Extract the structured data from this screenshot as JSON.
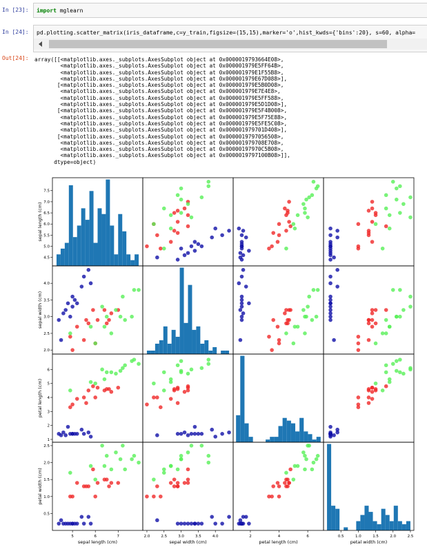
{
  "cells": [
    {
      "prompt": "In [23]:",
      "keyword": "import",
      "code": " mglearn"
    },
    {
      "prompt": "In [24]:",
      "code": "pd.plotting.scatter_matrix(iris_dataframe,c=y_train,figsize=(15,15),marker='o',hist_kwds={'bins':20}, s=60, alpha="
    }
  ],
  "output": {
    "prompt": "Out[24]:",
    "lines": [
      "array([[<matplotlib.axes._subplots.AxesSubplot object at 0x0000019793664E08>,",
      "        <matplotlib.axes._subplots.AxesSubplot object at 0x000001979E5FF64B>,",
      "        <matplotlib.axes._subplots.AxesSubplot object at 0x000001979E1F55B8>,",
      "        <matplotlib.axes._subplots.AxesSubplot object at 0x000001979E67D088>],",
      "       [<matplotlib.axes._subplots.AxesSubplot object at 0x000001979E5B0D08>,",
      "        <matplotlib.axes._subplots.AxesSubplot object at 0x000001979E7E4E8>,",
      "        <matplotlib.axes._subplots.AxesSubplot object at 0x000001979E5FF588>,",
      "        <matplotlib.axes._subplots.AxesSubplot object at 0x000001979E5D1D08>],",
      "       [<matplotlib.axes._subplots.AxesSubplot object at 0x000001979E5F4B008>,",
      "        <matplotlib.axes._subplots.AxesSubplot object at 0x000001979E5F75E88>,",
      "        <matplotlib.axes._subplots.AxesSubplot object at 0x000001979E5FE5C08>,",
      "        <matplotlib.axes._subplots.AxesSubplot object at 0x000001979701D408>],",
      "       [<matplotlib.axes._subplots.AxesSubplot object at 0x0000019797056508>,",
      "        <matplotlib.axes._subplots.AxesSubplot object at 0x000001979708E708>,",
      "        <matplotlib.axes._subplots.AxesSubplot object at 0x00000197970C5B08>,",
      "        <matplotlib.axes._subplots.AxesSubplot object at 0x0000019797100B08>]],",
      "      dtype=object)"
    ]
  },
  "chart_data": {
    "type": "scatter_matrix",
    "features": [
      {
        "label": "sepal length (cm)",
        "lim": [
          4.12,
          8.08
        ],
        "yticks": [
          4.5,
          {
            "value": 5,
            "label": "5.0"
          },
          5.5,
          {
            "value": 6,
            "label": "6.0"
          },
          6.5,
          {
            "value": 7,
            "label": "7.0"
          },
          7.5
        ],
        "xticks": [
          5,
          6,
          7
        ]
      },
      {
        "label": "sepal width (cm)",
        "lim": [
          1.88,
          4.52
        ],
        "yticks": [
          {
            "value": 2,
            "label": "2.0"
          },
          2.5,
          {
            "value": 3,
            "label": "3.0"
          },
          3.5,
          {
            "value": 4,
            "label": "4.0"
          }
        ],
        "xticks": [
          {
            "value": 2,
            "label": "2.0"
          },
          2.5,
          {
            "value": 3,
            "label": "3.0"
          },
          3.5,
          {
            "value": 4,
            "label": "4.0"
          }
        ]
      },
      {
        "label": "petal length (cm)",
        "lim": [
          0.8,
          7.1
        ],
        "yticks": [
          1,
          2,
          3,
          4,
          5,
          6
        ],
        "xticks": [
          2,
          4,
          6
        ]
      },
      {
        "label": "petal width (cm)",
        "lim": [
          0.0,
          2.6
        ],
        "yticks": [
          0.5,
          {
            "value": 1,
            "label": "1.0"
          },
          1.5,
          {
            "value": 2,
            "label": "2.0"
          },
          2.5
        ],
        "xticks": [
          0.5,
          {
            "value": 1,
            "label": "1.0"
          },
          1.5,
          {
            "value": 2,
            "label": "2.0"
          },
          2.5
        ]
      }
    ],
    "class_colors": [
      "#1010a8",
      "#f02828",
      "#58f058"
    ],
    "hist_color": "#1f77b4",
    "samples": [
      [
        5.1,
        3.5,
        1.4,
        0.2
      ],
      [
        4.9,
        3.0,
        1.4,
        0.2
      ],
      [
        4.7,
        3.2,
        1.3,
        0.2
      ],
      [
        4.6,
        3.1,
        1.5,
        0.2
      ],
      [
        5.0,
        3.6,
        1.4,
        0.2
      ],
      [
        5.4,
        3.9,
        1.7,
        0.4
      ],
      [
        4.4,
        2.9,
        1.4,
        0.2
      ],
      [
        5.8,
        4.0,
        1.2,
        0.2
      ],
      [
        5.7,
        4.4,
        1.5,
        0.4
      ],
      [
        5.2,
        3.4,
        1.4,
        0.2
      ],
      [
        4.8,
        3.4,
        1.9,
        0.2
      ],
      [
        5.0,
        3.3,
        1.4,
        0.2
      ],
      [
        4.5,
        2.3,
        1.3,
        0.3
      ],
      [
        5.5,
        4.2,
        1.4,
        0.2
      ],
      [
        7.0,
        3.2,
        4.7,
        1.4
      ],
      [
        6.4,
        3.2,
        4.5,
        1.5
      ],
      [
        5.5,
        2.3,
        4.0,
        1.3
      ],
      [
        6.5,
        2.8,
        4.6,
        1.5
      ],
      [
        5.7,
        2.8,
        4.5,
        1.3
      ],
      [
        4.9,
        2.4,
        3.3,
        1.0
      ],
      [
        6.6,
        2.9,
        4.6,
        1.3
      ],
      [
        5.2,
        2.7,
        3.9,
        1.4
      ],
      [
        5.0,
        2.0,
        3.5,
        1.0
      ],
      [
        6.0,
        2.2,
        4.0,
        1.0
      ],
      [
        6.1,
        2.9,
        4.7,
        1.4
      ],
      [
        5.6,
        2.9,
        3.6,
        1.3
      ],
      [
        6.7,
        3.1,
        4.4,
        1.4
      ],
      [
        5.9,
        3.2,
        4.8,
        1.8
      ],
      [
        6.3,
        3.3,
        6.0,
        2.5
      ],
      [
        5.8,
        2.7,
        5.1,
        1.9
      ],
      [
        7.1,
        3.0,
        5.9,
        2.1
      ],
      [
        6.5,
        3.0,
        5.8,
        2.2
      ],
      [
        7.6,
        3.0,
        6.6,
        2.1
      ],
      [
        4.9,
        2.5,
        4.5,
        1.7
      ],
      [
        7.3,
        2.9,
        6.3,
        1.8
      ],
      [
        6.7,
        2.5,
        5.8,
        1.8
      ],
      [
        7.2,
        3.6,
        6.1,
        2.5
      ],
      [
        6.4,
        2.7,
        5.3,
        1.9
      ],
      [
        7.7,
        3.8,
        6.7,
        2.2
      ],
      [
        6.0,
        2.2,
        5.0,
        1.5
      ],
      [
        7.9,
        3.8,
        6.4,
        2.0
      ],
      [
        6.9,
        3.2,
        5.7,
        2.3
      ]
    ],
    "classes": [
      0,
      0,
      0,
      0,
      0,
      0,
      0,
      0,
      0,
      0,
      0,
      0,
      0,
      0,
      1,
      1,
      1,
      1,
      1,
      1,
      1,
      1,
      1,
      1,
      1,
      1,
      1,
      1,
      2,
      2,
      2,
      2,
      2,
      2,
      2,
      2,
      2,
      2,
      2,
      2,
      2,
      2
    ],
    "hist": [
      {
        "bins": [
          4.3,
          4.48,
          4.66,
          4.84,
          5.02,
          5.2,
          5.38,
          5.56,
          5.74,
          5.92,
          6.1,
          6.28,
          6.46,
          6.64,
          6.82,
          7.0,
          7.18,
          7.36,
          7.54,
          7.72,
          7.9
        ],
        "counts": [
          2,
          3,
          4,
          14,
          5,
          7,
          10,
          8,
          13,
          4,
          10,
          9,
          15,
          7,
          2,
          9,
          6,
          2,
          1,
          2
        ]
      },
      {
        "bins": [
          2.0,
          2.12,
          2.24,
          2.36,
          2.48,
          2.6,
          2.72,
          2.84,
          2.96,
          3.08,
          3.2,
          3.32,
          3.44,
          3.56,
          3.68,
          3.8,
          3.92,
          4.04,
          4.16,
          4.28,
          4.4
        ],
        "counts": [
          1,
          1,
          3,
          4,
          8,
          3,
          7,
          5,
          25,
          9,
          20,
          7,
          8,
          3,
          4,
          1,
          2,
          0,
          1,
          1
        ]
      },
      {
        "bins": [
          1.0,
          1.295,
          1.59,
          1.885,
          2.18,
          2.475,
          2.77,
          3.065,
          3.36,
          3.655,
          3.95,
          4.245,
          4.54,
          4.835,
          5.13,
          5.425,
          5.72,
          6.015,
          6.31,
          6.605,
          6.9
        ],
        "counts": [
          10,
          32,
          7,
          2,
          0,
          0,
          0,
          1,
          2,
          2,
          6,
          9,
          8,
          7,
          4,
          9,
          4,
          3,
          1,
          2
        ]
      },
      {
        "bins": [
          0.1,
          0.22,
          0.34,
          0.46,
          0.58,
          0.7,
          0.82,
          0.94,
          1.06,
          1.18,
          1.3,
          1.42,
          1.54,
          1.66,
          1.78,
          1.9,
          2.02,
          2.14,
          2.26,
          2.38,
          2.5
        ],
        "counts": [
          28,
          8,
          7,
          0,
          1,
          0,
          0,
          3,
          5,
          8,
          6,
          3,
          2,
          7,
          5,
          3,
          8,
          3,
          2,
          3
        ]
      }
    ]
  }
}
